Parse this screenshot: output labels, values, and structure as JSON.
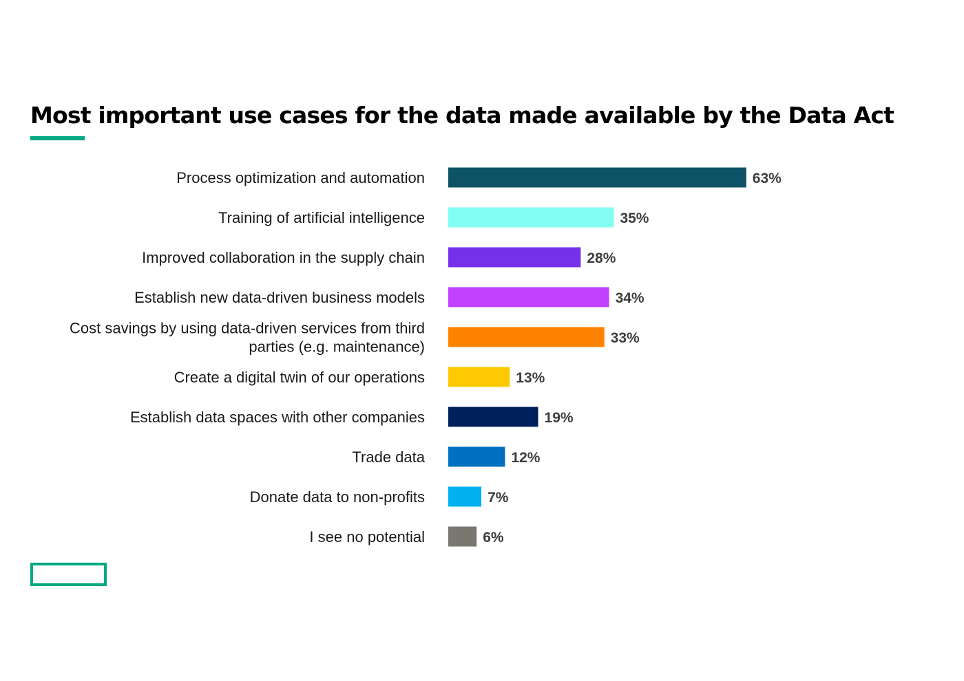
{
  "chart_data": {
    "type": "bar",
    "orientation": "horizontal",
    "title": "Most important use cases for the data made available by the Data Act",
    "categories": [
      "Process optimization and automation",
      "Training of artificial intelligence",
      "Improved collaboration in the supply chain",
      "Establish new data-driven business models",
      "Cost savings by using data-driven services from third parties (e.g. maintenance)",
      "Create a digital twin of our operations",
      "Establish data spaces with other companies",
      "Trade data",
      "Donate data to non-profits",
      "I see no potential"
    ],
    "category_lines": [
      [
        "Process optimization and automation"
      ],
      [
        "Training of artificial intelligence"
      ],
      [
        "Improved collaboration in the supply chain"
      ],
      [
        "Establish new data-driven business models"
      ],
      [
        "Cost savings by using data-driven services from third",
        "parties (e.g. maintenance)"
      ],
      [
        "Create a digital twin of our operations"
      ],
      [
        "Establish data spaces with other companies"
      ],
      [
        "Trade data"
      ],
      [
        "Donate data to non-profits"
      ],
      [
        "I see no potential"
      ]
    ],
    "values": [
      63,
      35,
      28,
      34,
      33,
      13,
      19,
      12,
      7,
      6
    ],
    "value_labels": [
      "63%",
      "35%",
      "28%",
      "34%",
      "33%",
      "13%",
      "19%",
      "12%",
      "7%",
      "6%"
    ],
    "colors": [
      "#0e5265",
      "#82fff2",
      "#7630ea",
      "#c140ff",
      "#ff8300",
      "#fec901",
      "#00205b",
      "#0070c0",
      "#00b0f0",
      "#7a7771"
    ],
    "unit": "%",
    "grid": false,
    "legend": "none"
  },
  "accent_color": "#01a982"
}
